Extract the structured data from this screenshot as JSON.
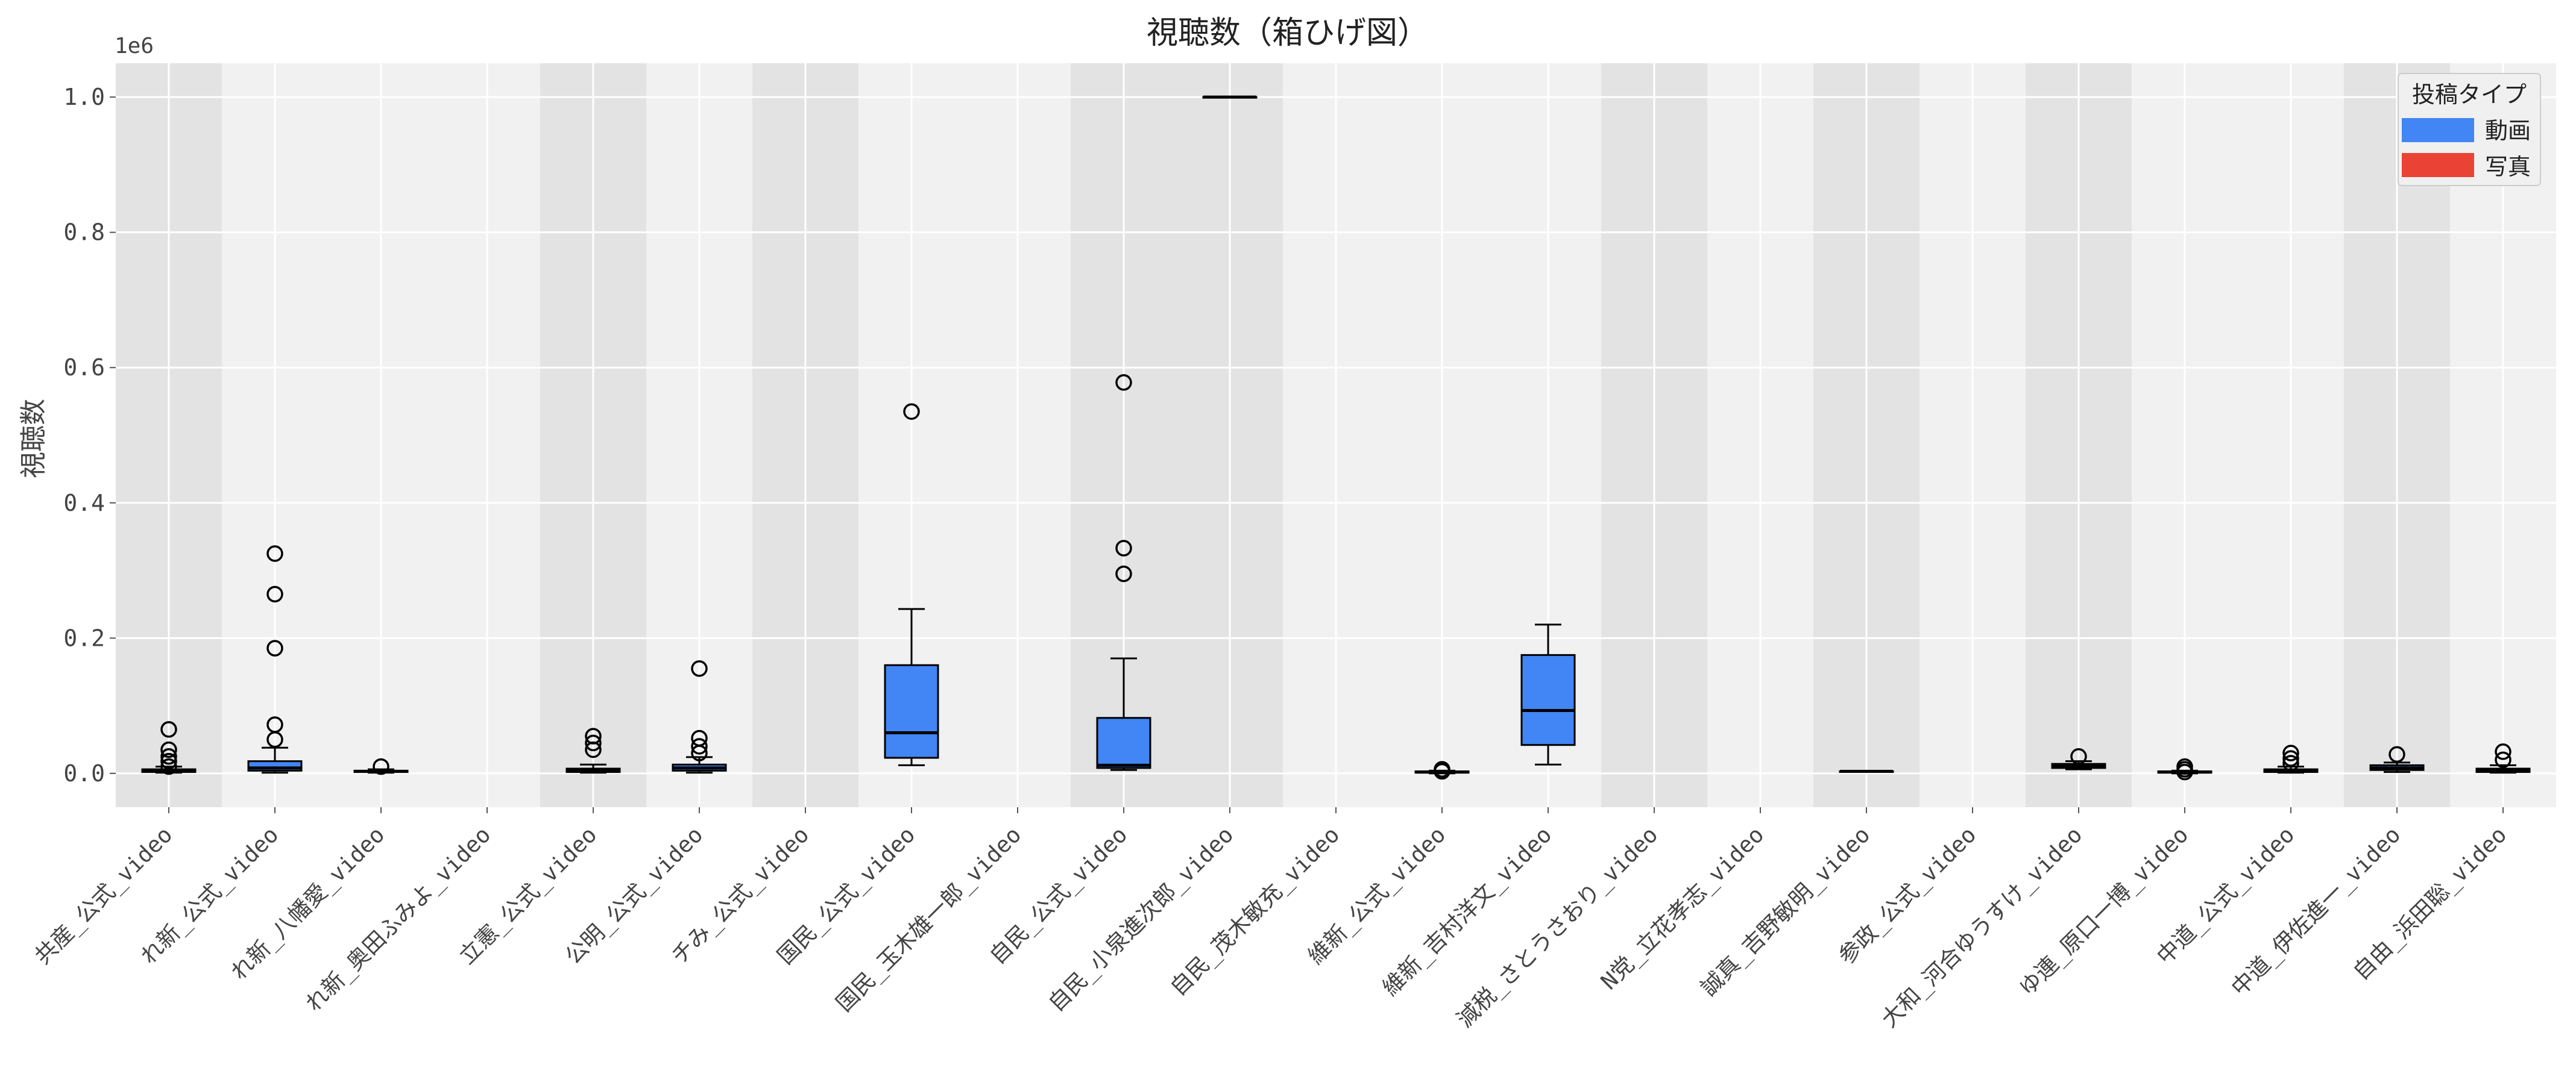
{
  "chart_data": {
    "type": "box",
    "title": "視聴数（箱ひげ図）",
    "ylabel": "視聴数",
    "xlabel": "",
    "y_offset_label": "1e6",
    "ylim": [
      -0.05,
      1.05
    ],
    "yticks": [
      0.0,
      0.2,
      0.4,
      0.6,
      0.8,
      1.0
    ],
    "ytick_labels": [
      "0.0",
      "0.2",
      "0.4",
      "0.6",
      "0.8",
      "1.0"
    ],
    "grid": true,
    "legend": {
      "title": "投稿タイプ",
      "position": "top-right",
      "items": [
        {
          "label": "動画",
          "color": "#4285f4"
        },
        {
          "label": "写真",
          "color": "#ea4335"
        }
      ]
    },
    "categories": [
      "共産_公式_video",
      "れ新_公式_video",
      "れ新_八幡愛_video",
      "れ新_奥田ふみよ_video",
      "立憲_公式_video",
      "公明_公式_video",
      "チみ_公式_video",
      "国民_公式_video",
      "国民_玉木雄一郎_video",
      "自民_公式_video",
      "自民_小泉進次郎_video",
      "自民_茂木敏充_video",
      "維新_公式_video",
      "維新_吉村洋文_video",
      "減税_さとうさおり_video",
      "N党_立花孝志_video",
      "誠真_吉野敏明_video",
      "参政_公式_video",
      "大和_河合ゆうすけ_video",
      "ゆ連_原口一博_video",
      "中道_公式_video",
      "中道_伊佐進一_video",
      "自由_浜田聡_video"
    ],
    "boxes": [
      {
        "q1": 0.002,
        "median": 0.004,
        "q3": 0.006,
        "whisker_low": 0.001,
        "whisker_high": 0.01,
        "outliers": [
          0.065,
          0.035,
          0.025,
          0.018,
          0.01
        ]
      },
      {
        "q1": 0.004,
        "median": 0.008,
        "q3": 0.018,
        "whisker_low": 0.001,
        "whisker_high": 0.038,
        "outliers": [
          0.325,
          0.265,
          0.185,
          0.072,
          0.05
        ]
      },
      {
        "q1": 0.002,
        "median": 0.003,
        "q3": 0.004,
        "whisker_low": 0.001,
        "whisker_high": 0.006,
        "outliers": [
          0.01
        ]
      },
      null,
      {
        "q1": 0.002,
        "median": 0.004,
        "q3": 0.007,
        "whisker_low": 0.001,
        "whisker_high": 0.013,
        "outliers": [
          0.055,
          0.045,
          0.035
        ]
      },
      {
        "q1": 0.004,
        "median": 0.008,
        "q3": 0.013,
        "whisker_low": 0.001,
        "whisker_high": 0.024,
        "outliers": [
          0.155,
          0.052,
          0.04,
          0.03
        ]
      },
      null,
      {
        "q1": 0.023,
        "median": 0.06,
        "q3": 0.16,
        "whisker_low": 0.012,
        "whisker_high": 0.243,
        "outliers": [
          0.535
        ]
      },
      null,
      {
        "q1": 0.008,
        "median": 0.012,
        "q3": 0.082,
        "whisker_low": 0.005,
        "whisker_high": 0.17,
        "outliers": [
          0.578,
          0.333,
          0.295
        ]
      },
      {
        "q1": 1.0,
        "median": 1.0,
        "q3": 1.0,
        "whisker_low": 1.0,
        "whisker_high": 1.0,
        "outliers": []
      },
      null,
      {
        "q1": 0.001,
        "median": 0.002,
        "q3": 0.003,
        "whisker_low": 0.0,
        "whisker_high": 0.004,
        "outliers": [
          0.006,
          0.003
        ]
      },
      {
        "q1": 0.042,
        "median": 0.093,
        "q3": 0.175,
        "whisker_low": 0.013,
        "whisker_high": 0.22,
        "outliers": []
      },
      null,
      null,
      {
        "q1": 0.003,
        "median": 0.003,
        "q3": 0.003,
        "whisker_low": 0.003,
        "whisker_high": 0.003,
        "outliers": []
      },
      null,
      {
        "q1": 0.008,
        "median": 0.011,
        "q3": 0.014,
        "whisker_low": 0.006,
        "whisker_high": 0.018,
        "outliers": [
          0.025
        ]
      },
      {
        "q1": 0.001,
        "median": 0.002,
        "q3": 0.003,
        "whisker_low": 0.0,
        "whisker_high": 0.004,
        "outliers": [
          0.01,
          0.006,
          0.002
        ]
      },
      {
        "q1": 0.002,
        "median": 0.004,
        "q3": 0.006,
        "whisker_low": 0.001,
        "whisker_high": 0.01,
        "outliers": [
          0.03,
          0.022,
          0.015
        ]
      },
      {
        "q1": 0.005,
        "median": 0.008,
        "q3": 0.012,
        "whisker_low": 0.002,
        "whisker_high": 0.016,
        "outliers": [
          0.028
        ]
      },
      {
        "q1": 0.002,
        "median": 0.004,
        "q3": 0.007,
        "whisker_low": 0.001,
        "whisker_high": 0.012,
        "outliers": [
          0.032,
          0.02
        ]
      }
    ],
    "box_color": "#4285f4"
  }
}
